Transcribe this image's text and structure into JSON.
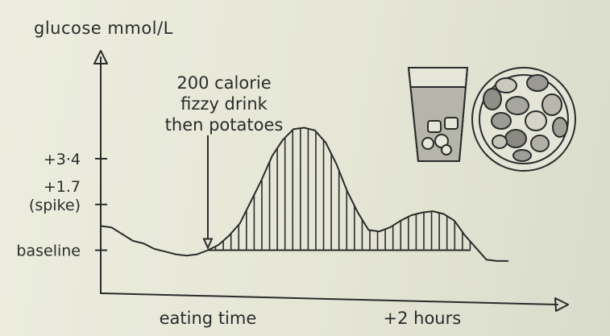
{
  "chart_data": {
    "type": "area",
    "ylabel": "glucose mmol/L",
    "y_ticks": [
      {
        "label_lines": [
          "+3·4"
        ],
        "value": 3.4
      },
      {
        "label_lines": [
          "+1.7",
          "(spike)"
        ],
        "value": 1.7
      },
      {
        "label_lines": [
          "baseline"
        ],
        "value": 0
      }
    ],
    "x_labels": [
      {
        "label": "eating time",
        "hours": 0
      },
      {
        "label": "+2 hours",
        "hours": 2
      }
    ],
    "annotation": {
      "lines": [
        "200 calorie",
        "fizzy drink",
        "then potatoes"
      ],
      "hours": 0
    },
    "xlim": [
      -1,
      3.4
    ],
    "ylim": [
      -1.6,
      7.5
    ],
    "series": [
      {
        "points": [
          [
            -1.0,
            0.9
          ],
          [
            -0.9,
            0.85
          ],
          [
            -0.8,
            0.6
          ],
          [
            -0.7,
            0.35
          ],
          [
            -0.6,
            0.25
          ],
          [
            -0.5,
            0.05
          ],
          [
            -0.4,
            -0.05
          ],
          [
            -0.3,
            -0.15
          ],
          [
            -0.2,
            -0.2
          ],
          [
            -0.1,
            -0.15
          ],
          [
            0.0,
            0.0
          ],
          [
            0.1,
            0.2
          ],
          [
            0.2,
            0.55
          ],
          [
            0.3,
            1.0
          ],
          [
            0.4,
            1.8
          ],
          [
            0.5,
            2.6
          ],
          [
            0.6,
            3.5
          ],
          [
            0.7,
            4.1
          ],
          [
            0.8,
            4.5
          ],
          [
            0.9,
            4.55
          ],
          [
            1.0,
            4.45
          ],
          [
            1.1,
            4.0
          ],
          [
            1.2,
            3.2
          ],
          [
            1.3,
            2.2
          ],
          [
            1.4,
            1.4
          ],
          [
            1.5,
            0.75
          ],
          [
            1.6,
            0.7
          ],
          [
            1.7,
            0.85
          ],
          [
            1.8,
            1.1
          ],
          [
            1.9,
            1.3
          ],
          [
            2.0,
            1.4
          ],
          [
            2.1,
            1.45
          ],
          [
            2.2,
            1.35
          ],
          [
            2.3,
            1.1
          ],
          [
            2.4,
            0.55
          ],
          [
            2.5,
            0.1
          ],
          [
            2.6,
            -0.35
          ],
          [
            2.7,
            -0.4
          ],
          [
            2.8,
            -0.4
          ]
        ],
        "hatched_from_hours": 0,
        "hatched_to_hours": 2.45
      }
    ],
    "illustrations": [
      {
        "name": "fizzy-drink-glass-icon"
      },
      {
        "name": "potatoes-plate-icon"
      }
    ],
    "grid": false,
    "legend": "none"
  }
}
